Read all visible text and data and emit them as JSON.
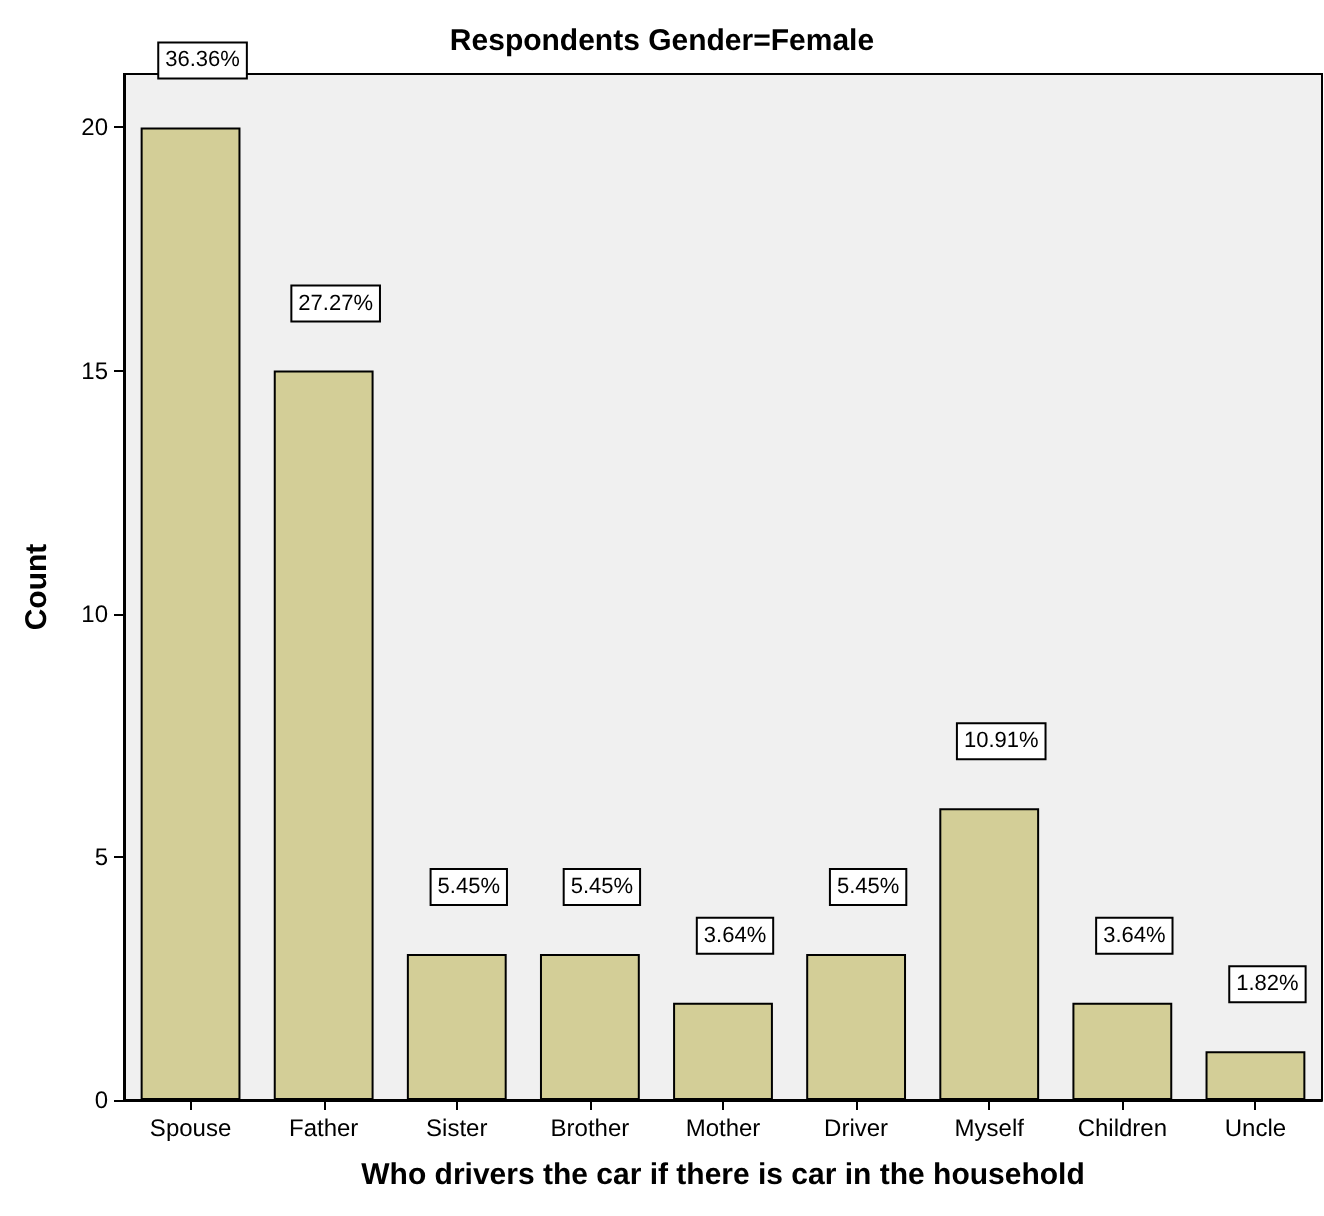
{
  "chart_data": {
    "type": "bar",
    "title": "Respondents Gender=Female",
    "xlabel": "Who drivers the car if there is car in the household",
    "ylabel": "Count",
    "categories": [
      "Spouse",
      "Father",
      "Sister",
      "Brother",
      "Mother",
      "Driver",
      "Myself",
      "Children",
      "Uncle"
    ],
    "values": [
      20,
      15,
      3,
      3,
      2,
      3,
      6,
      2,
      1
    ],
    "annotations": [
      {
        "text": "36.36%",
        "x": "Spouse",
        "y": 20
      },
      {
        "text": "27.27%",
        "x": "Father",
        "y": 15
      },
      {
        "text": "5.45%",
        "x": "Sister",
        "y": 3
      },
      {
        "text": "5.45%",
        "x": "Brother",
        "y": 3
      },
      {
        "text": "3.64%",
        "x": "Mother",
        "y": 2
      },
      {
        "text": "5.45%",
        "x": "Driver",
        "y": 3
      },
      {
        "text": "10.91%",
        "x": "Myself",
        "y": 6
      },
      {
        "text": "3.64%",
        "x": "Children",
        "y": 2
      },
      {
        "text": "1.82%",
        "x": "Uncle",
        "y": 1
      }
    ],
    "color": "#d3ce97",
    "ylim": [
      0,
      21.1
    ],
    "yticks": [
      0,
      5,
      10,
      15,
      20
    ],
    "grid": false
  }
}
